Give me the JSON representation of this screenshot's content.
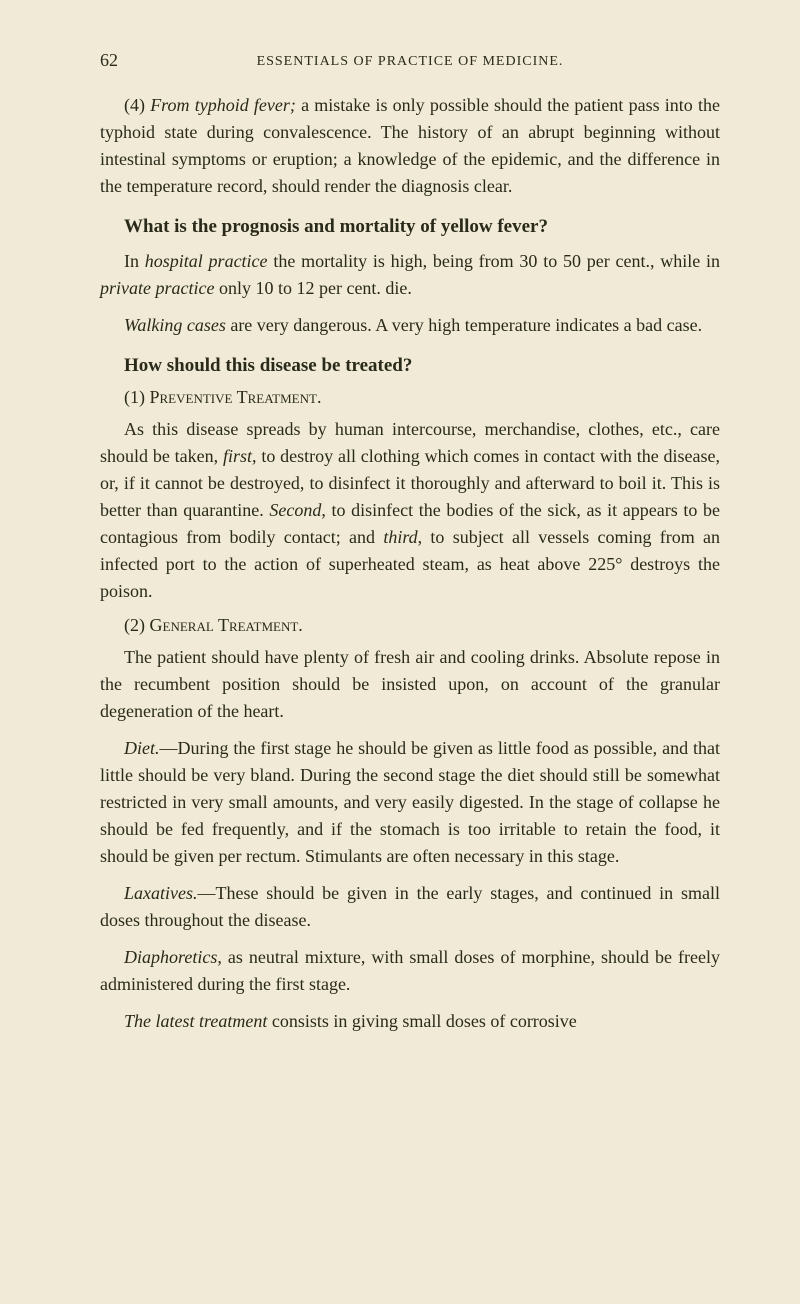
{
  "page_number": "62",
  "header": "ESSENTIALS OF PRACTICE OF MEDICINE.",
  "para1_prefix": "(4) ",
  "para1_italic1": "From typhoid fever;",
  "para1_text": " a mistake is only possible should the patient pass into the typhoid state during convalescence. The history of an abrupt beginning without intestinal symptoms or eruption; a knowledge of the epidemic, and the difference in the temperature record, should render the diagnosis clear.",
  "question1": "What is the prognosis and mortality of yellow fever?",
  "para2_text1": "In ",
  "para2_italic1": "hospital practice",
  "para2_text2": " the mortality is high, being from 30 to 50 per cent., while in ",
  "para2_italic2": "private practice",
  "para2_text3": " only 10 to 12 per cent. die.",
  "para3_italic1": "Walking cases",
  "para3_text": " are very dangerous. A very high temperature indicates a bad case.",
  "question2": "How should this disease be treated?",
  "sub1_prefix": "(1) ",
  "sub1_text": "Preventive Treatment.",
  "para4_text1": "As this disease spreads by human intercourse, merchandise, clothes, etc., care should be taken, ",
  "para4_italic1": "first",
  "para4_text2": ", to destroy all clothing which comes in contact with the disease, or, if it cannot be destroyed, to disinfect it thoroughly and afterward to boil it. This is better than quarantine. ",
  "para4_italic2": "Second",
  "para4_text3": ", to disinfect the bodies of the sick, as it appears to be contagious from bodily contact; and ",
  "para4_italic3": "third",
  "para4_text4": ", to subject all vessels coming from an infected port to the action of superheated steam, as heat above 225° destroys the poison.",
  "sub2_prefix": "(2) ",
  "sub2_text": "General Treatment.",
  "para5_text": "The patient should have plenty of fresh air and cooling drinks. Absolute repose in the recumbent position should be insisted upon, on account of the granular degeneration of the heart.",
  "para6_italic1": "Diet.",
  "para6_text": "—During the first stage he should be given as little food as possible, and that little should be very bland. During the second stage the diet should still be somewhat restricted in very small amounts, and very easily digested. In the stage of collapse he should be fed frequently, and if the stomach is too irritable to retain the food, it should be given per rectum. Stimulants are often necessary in this stage.",
  "para7_italic1": "Laxatives.",
  "para7_text": "—These should be given in the early stages, and continued in small doses throughout the disease.",
  "para8_italic1": "Diaphoretics",
  "para8_text": ", as neutral mixture, with small doses of morphine, should be freely administered during the first stage.",
  "para9_italic1": "The latest treatment",
  "para9_text": " consists in giving small doses of corrosive"
}
